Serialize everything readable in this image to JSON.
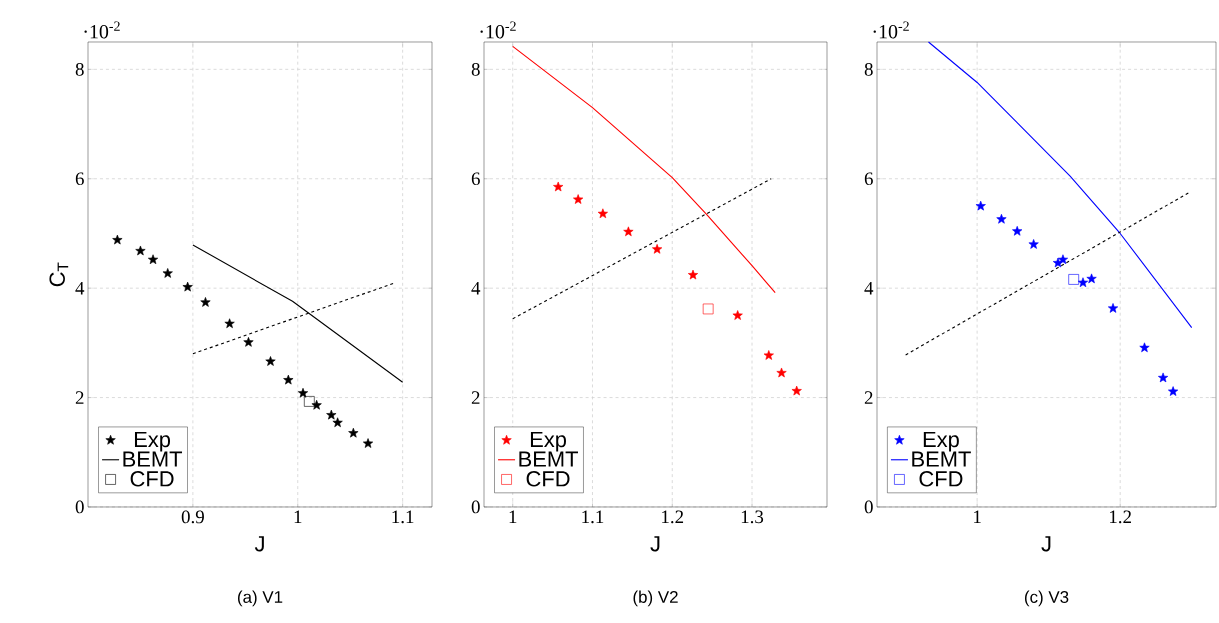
{
  "chart_data": [
    {
      "type": "scatter",
      "title": "(a) V1",
      "xlabel": "J",
      "ylabel": "C$_{T}$",
      "annotations": [
        "·10$^{-2}$"
      ],
      "xlim": [
        0.8,
        1.128
      ],
      "ylim": [
        0,
        8.5
      ],
      "xticks": [
        0.9,
        1,
        1.1
      ],
      "yticks": [
        0,
        2,
        4,
        6,
        8
      ],
      "grid": true,
      "legend": "bottom left",
      "series": [
        {
          "name": "Exp",
          "marker": "star",
          "color": "#000000",
          "x": [
            0.828,
            0.85,
            0.862,
            0.876,
            0.895,
            0.912,
            0.935,
            0.953,
            0.974,
            0.991,
            1.005,
            1.018,
            1.032,
            1.038,
            1.053,
            1.067
          ],
          "values": [
            4.88,
            4.68,
            4.52,
            4.27,
            4.02,
            3.74,
            3.35,
            3.01,
            2.66,
            2.32,
            2.08,
            1.86,
            1.68,
            1.54,
            1.35,
            1.16
          ]
        },
        {
          "name": "BEMT",
          "type": "line",
          "marker": "none",
          "line_style": "solid",
          "color": "#000000",
          "x": [
            0.9,
            0.995,
            1.1
          ],
          "values": [
            4.79,
            3.76,
            2.28
          ]
        },
        {
          "name": "CFD",
          "marker": "square",
          "color": "#000000",
          "x": [
            1.011
          ],
          "values": [
            1.93
          ]
        },
        {
          "type": "line",
          "marker": "none",
          "line_style": "dashed",
          "color": "#000000",
          "x": [
            0.9,
            1.093
          ],
          "values": [
            2.8,
            4.1
          ]
        }
      ]
    },
    {
      "type": "scatter",
      "title": "(b) V2",
      "xlabel": "J",
      "annotations": [
        "·10$^{-2}$"
      ],
      "xlim": [
        0.964,
        1.394
      ],
      "ylim": [
        0,
        8.5
      ],
      "xticks": [
        1,
        1.1,
        1.2,
        1.3
      ],
      "yticks": [
        0,
        2,
        4,
        6,
        8
      ],
      "grid": true,
      "legend": "bottom left",
      "series": [
        {
          "name": "Exp",
          "marker": "star",
          "color": "#ff0000",
          "x": [
            1.057,
            1.082,
            1.113,
            1.145,
            1.181,
            1.226,
            1.282,
            1.321,
            1.337,
            1.356
          ],
          "values": [
            5.85,
            5.62,
            5.36,
            5.03,
            4.71,
            4.24,
            3.5,
            2.77,
            2.45,
            2.12
          ]
        },
        {
          "name": "BEMT",
          "type": "line",
          "marker": "none",
          "line_style": "solid",
          "color": "#ff0000",
          "x": [
            1.0,
            1.1,
            1.2,
            1.243,
            1.3,
            1.329
          ],
          "values": [
            8.42,
            7.3,
            6.02,
            5.35,
            4.41,
            3.92
          ]
        },
        {
          "name": "CFD",
          "marker": "square",
          "color": "#ff0000",
          "x": [
            1.245
          ],
          "values": [
            3.62
          ]
        },
        {
          "type": "line",
          "marker": "none",
          "line_style": "dashed",
          "color": "#000000",
          "x": [
            1.0,
            1.324
          ],
          "values": [
            3.44,
            6.0
          ]
        }
      ]
    },
    {
      "type": "scatter",
      "title": "(c) V3",
      "xlabel": "J",
      "annotations": [
        "·10$^{-2}$"
      ],
      "xlim": [
        0.86,
        1.334
      ],
      "ylim": [
        0,
        8.5
      ],
      "xticks": [
        1,
        1.2
      ],
      "yticks": [
        0,
        2,
        4,
        6,
        8
      ],
      "grid": true,
      "legend": "bottom left",
      "series": [
        {
          "name": "Exp",
          "marker": "star",
          "color": "#0000ff",
          "x": [
            1.005,
            1.034,
            1.056,
            1.079,
            1.113,
            1.12,
            1.148,
            1.16,
            1.19,
            1.234,
            1.26,
            1.274
          ],
          "values": [
            5.5,
            5.26,
            5.04,
            4.8,
            4.46,
            4.52,
            4.1,
            4.17,
            3.63,
            2.91,
            2.36,
            2.11
          ]
        },
        {
          "name": "BEMT",
          "type": "line",
          "marker": "none",
          "line_style": "solid",
          "color": "#0000ff",
          "x": [
            0.932,
            1.0,
            1.13,
            1.2,
            1.3
          ],
          "values": [
            8.5,
            7.76,
            6.05,
            5.0,
            3.28
          ]
        },
        {
          "name": "CFD",
          "marker": "square",
          "color": "#0000ff",
          "x": [
            1.135
          ],
          "values": [
            4.16
          ]
        },
        {
          "type": "line",
          "marker": "none",
          "line_style": "dashed",
          "color": "#000000",
          "x": [
            0.9,
            1.298
          ],
          "values": [
            2.78,
            5.76
          ]
        }
      ]
    }
  ]
}
